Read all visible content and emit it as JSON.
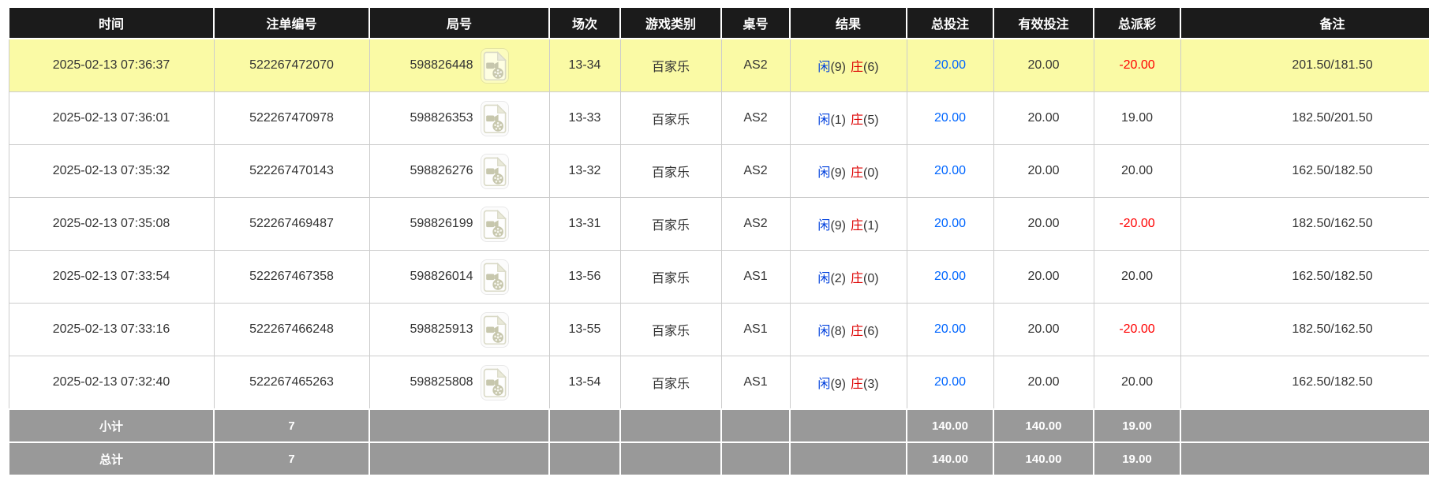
{
  "colors": {
    "header_bg": "#1b1b1b",
    "header_text": "#ffffff",
    "highlight_row_bg": "#fafaa5",
    "summary_row_bg": "#999999",
    "summary_text": "#ffffff",
    "row_text": "#333333",
    "player_blue": "#0040dd",
    "banker_red": "#dd0000",
    "bet_link_blue": "#0066ff",
    "negative_red": "#ff0000",
    "grid_line": "#cccccc"
  },
  "icons": {
    "round_icon": "video-file-icon"
  },
  "table": {
    "columns": [
      {
        "key": "time",
        "label": "时间"
      },
      {
        "key": "order_no",
        "label": "注单编号"
      },
      {
        "key": "round_no",
        "label": "局号"
      },
      {
        "key": "session",
        "label": "场次"
      },
      {
        "key": "game_type",
        "label": "游戏类别"
      },
      {
        "key": "table_no",
        "label": "桌号"
      },
      {
        "key": "result",
        "label": "结果"
      },
      {
        "key": "total_bet",
        "label": "总投注"
      },
      {
        "key": "valid_bet",
        "label": "有效投注"
      },
      {
        "key": "total_payout",
        "label": "总派彩"
      },
      {
        "key": "remark",
        "label": "备注"
      }
    ],
    "rows": [
      {
        "time": "2025-02-13 07:36:37",
        "order_no": "522267472070",
        "round_no": "598826448",
        "session": "13-34",
        "game_type": "百家乐",
        "table_no": "AS2",
        "result": {
          "player_label": "闲",
          "player_score": "(9)",
          "banker_label": "庄",
          "banker_score": "(6)"
        },
        "total_bet": "20.00",
        "valid_bet": "20.00",
        "total_payout": "-20.00",
        "remark": "201.50/181.50",
        "highlighted": true
      },
      {
        "time": "2025-02-13 07:36:01",
        "order_no": "522267470978",
        "round_no": "598826353",
        "session": "13-33",
        "game_type": "百家乐",
        "table_no": "AS2",
        "result": {
          "player_label": "闲",
          "player_score": "(1)",
          "banker_label": "庄",
          "banker_score": "(5)"
        },
        "total_bet": "20.00",
        "valid_bet": "20.00",
        "total_payout": "19.00",
        "remark": "182.50/201.50",
        "highlighted": false
      },
      {
        "time": "2025-02-13 07:35:32",
        "order_no": "522267470143",
        "round_no": "598826276",
        "session": "13-32",
        "game_type": "百家乐",
        "table_no": "AS2",
        "result": {
          "player_label": "闲",
          "player_score": "(9)",
          "banker_label": "庄",
          "banker_score": "(0)"
        },
        "total_bet": "20.00",
        "valid_bet": "20.00",
        "total_payout": "20.00",
        "remark": "162.50/182.50",
        "highlighted": false
      },
      {
        "time": "2025-02-13 07:35:08",
        "order_no": "522267469487",
        "round_no": "598826199",
        "session": "13-31",
        "game_type": "百家乐",
        "table_no": "AS2",
        "result": {
          "player_label": "闲",
          "player_score": "(9)",
          "banker_label": "庄",
          "banker_score": "(1)"
        },
        "total_bet": "20.00",
        "valid_bet": "20.00",
        "total_payout": "-20.00",
        "remark": "182.50/162.50",
        "highlighted": false
      },
      {
        "time": "2025-02-13 07:33:54",
        "order_no": "522267467358",
        "round_no": "598826014",
        "session": "13-56",
        "game_type": "百家乐",
        "table_no": "AS1",
        "result": {
          "player_label": "闲",
          "player_score": "(2)",
          "banker_label": "庄",
          "banker_score": "(0)"
        },
        "total_bet": "20.00",
        "valid_bet": "20.00",
        "total_payout": "20.00",
        "remark": "162.50/182.50",
        "highlighted": false
      },
      {
        "time": "2025-02-13 07:33:16",
        "order_no": "522267466248",
        "round_no": "598825913",
        "session": "13-55",
        "game_type": "百家乐",
        "table_no": "AS1",
        "result": {
          "player_label": "闲",
          "player_score": "(8)",
          "banker_label": "庄",
          "banker_score": "(6)"
        },
        "total_bet": "20.00",
        "valid_bet": "20.00",
        "total_payout": "-20.00",
        "remark": "182.50/162.50",
        "highlighted": false
      },
      {
        "time": "2025-02-13 07:32:40",
        "order_no": "522267465263",
        "round_no": "598825808",
        "session": "13-54",
        "game_type": "百家乐",
        "table_no": "AS1",
        "result": {
          "player_label": "闲",
          "player_score": "(9)",
          "banker_label": "庄",
          "banker_score": "(3)"
        },
        "total_bet": "20.00",
        "valid_bet": "20.00",
        "total_payout": "20.00",
        "remark": "162.50/182.50",
        "highlighted": false
      }
    ],
    "subtotal_row": {
      "label": "小计",
      "count": "7",
      "total_bet": "140.00",
      "valid_bet": "140.00",
      "total_payout": "19.00"
    },
    "total_row": {
      "label": "总计",
      "count": "7",
      "total_bet": "140.00",
      "valid_bet": "140.00",
      "total_payout": "19.00"
    }
  }
}
